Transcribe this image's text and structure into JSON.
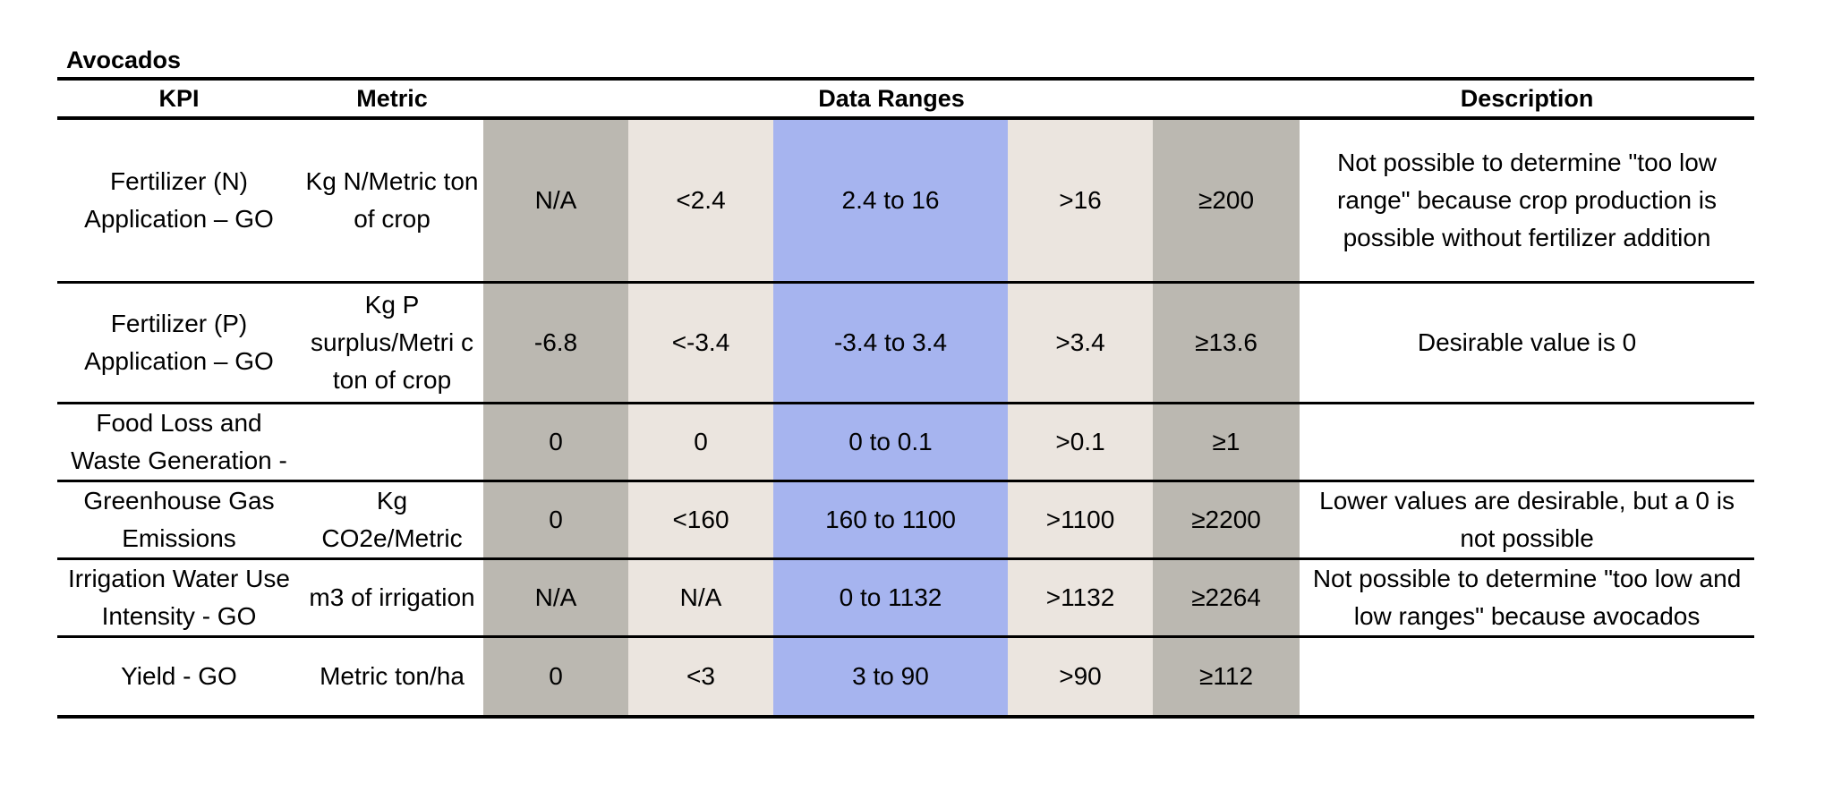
{
  "title": "Avocados",
  "headers": {
    "kpi": "KPI",
    "metric": "Metric",
    "data_ranges": "Data Ranges",
    "description": "Description"
  },
  "colors": {
    "outer_range": "#bbb8b1",
    "mid_range": "#ebe5df",
    "target_range": "#a6b4ef"
  },
  "rows": [
    {
      "kpi": "Fertilizer (N) Application – GO",
      "metric": "Kg N/Metric ton of crop",
      "ranges": [
        "N/A",
        "<2.4",
        "2.4 to 16",
        ">16",
        "≥200"
      ],
      "description": "Not possible to determine \"too low range\" because crop production is possible without fertilizer addition"
    },
    {
      "kpi": "Fertilizer (P) Application – GO",
      "metric": "Kg P surplus/Metri c ton of crop",
      "ranges": [
        "-6.8",
        "<-3.4",
        "-3.4 to 3.4",
        ">3.4",
        "≥13.6"
      ],
      "description": "Desirable value is 0"
    },
    {
      "kpi": "Food Loss and Waste Generation -",
      "metric": "",
      "ranges": [
        "0",
        "0",
        "0 to 0.1",
        ">0.1",
        "≥1"
      ],
      "description": ""
    },
    {
      "kpi": "Greenhouse Gas Emissions",
      "metric": "Kg CO2e/Metric",
      "ranges": [
        "0",
        "<160",
        "160 to 1100",
        ">1100",
        "≥2200"
      ],
      "description": "Lower values are desirable, but a 0 is not possible"
    },
    {
      "kpi": "Irrigation Water Use Intensity - GO",
      "metric": "m3 of irrigation",
      "ranges": [
        "N/A",
        "N/A",
        "0 to 1132",
        ">1132",
        "≥2264"
      ],
      "description": "Not possible to determine \"too low and low ranges\" because avocados"
    },
    {
      "kpi": "Yield - GO",
      "metric": "Metric ton/ha",
      "ranges": [
        "0",
        "<3",
        "3  to 90",
        ">90",
        "≥112"
      ],
      "description": ""
    }
  ]
}
